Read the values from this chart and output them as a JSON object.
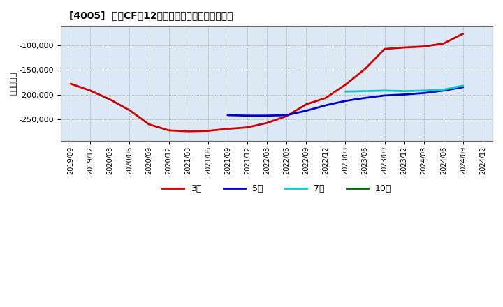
{
  "title": "[4005]  投賄CFの12か月移動合計の平均値の推移",
  "ylabel": "（百万円）",
  "background_color": "#ffffff",
  "plot_background": "#dce9f5",
  "grid_color": "#888888",
  "ylim": [
    -295000,
    -60000
  ],
  "yticks": [
    -250000,
    -200000,
    -150000,
    -100000
  ],
  "series_3y": {
    "color": "#cc0000",
    "label": "3年",
    "points": [
      [
        "2019/09",
        -178000
      ],
      [
        "2019/12",
        -192000
      ],
      [
        "2020/03",
        -210000
      ],
      [
        "2020/06",
        -232000
      ],
      [
        "2020/09",
        -261000
      ],
      [
        "2020/12",
        -273000
      ],
      [
        "2021/03",
        -275000
      ],
      [
        "2021/06",
        -274000
      ],
      [
        "2021/09",
        -270000
      ],
      [
        "2021/12",
        -267000
      ],
      [
        "2022/03",
        -258000
      ],
      [
        "2022/06",
        -244000
      ],
      [
        "2022/09",
        -220000
      ],
      [
        "2022/12",
        -207000
      ],
      [
        "2023/03",
        -180000
      ],
      [
        "2023/06",
        -148000
      ],
      [
        "2023/09",
        -107000
      ],
      [
        "2023/12",
        -104000
      ],
      [
        "2024/03",
        -102000
      ],
      [
        "2024/06",
        -96000
      ],
      [
        "2024/09",
        -76000
      ]
    ]
  },
  "series_5y": {
    "color": "#0000cc",
    "label": "5年",
    "points": [
      [
        "2021/09",
        -242000
      ],
      [
        "2021/12",
        -243000
      ],
      [
        "2022/03",
        -243000
      ],
      [
        "2022/06",
        -242000
      ],
      [
        "2022/09",
        -233000
      ],
      [
        "2022/12",
        -222000
      ],
      [
        "2023/03",
        -213000
      ],
      [
        "2023/06",
        -207000
      ],
      [
        "2023/09",
        -202000
      ],
      [
        "2023/12",
        -200000
      ],
      [
        "2024/03",
        -197000
      ],
      [
        "2024/06",
        -192000
      ],
      [
        "2024/09",
        -185000
      ]
    ]
  },
  "series_7y": {
    "color": "#00cccc",
    "label": "7年",
    "points": [
      [
        "2023/03",
        -194000
      ],
      [
        "2023/06",
        -193000
      ],
      [
        "2023/09",
        -192000
      ],
      [
        "2023/12",
        -193000
      ],
      [
        "2024/03",
        -192000
      ],
      [
        "2024/06",
        -190000
      ],
      [
        "2024/09",
        -182000
      ]
    ]
  },
  "series_10y": {
    "color": "#006600",
    "label": "10年",
    "points": []
  },
  "xticklabels": [
    "2019/09",
    "2019/12",
    "2020/03",
    "2020/06",
    "2020/09",
    "2020/12",
    "2021/03",
    "2021/06",
    "2021/09",
    "2021/12",
    "2022/03",
    "2022/06",
    "2022/09",
    "2022/12",
    "2023/03",
    "2023/06",
    "2023/09",
    "2023/12",
    "2024/03",
    "2024/06",
    "2024/09",
    "2024/12"
  ]
}
